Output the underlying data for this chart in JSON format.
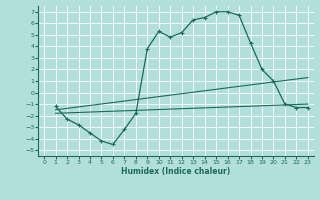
{
  "xlabel": "Humidex (Indice chaleur)",
  "bg_color": "#b2dfdb",
  "grid_color": "#ffffff",
  "line_color": "#1a6b5a",
  "xlim": [
    -0.5,
    23.5
  ],
  "ylim": [
    -5.5,
    7.5
  ],
  "xticks": [
    0,
    1,
    2,
    3,
    4,
    5,
    6,
    7,
    8,
    9,
    10,
    11,
    12,
    13,
    14,
    15,
    16,
    17,
    18,
    19,
    20,
    21,
    22,
    23
  ],
  "yticks": [
    -5,
    -4,
    -3,
    -2,
    -1,
    0,
    1,
    2,
    3,
    4,
    5,
    6,
    7
  ],
  "line1_x": [
    1,
    2,
    3,
    4,
    5,
    6,
    7,
    8,
    9,
    10,
    11,
    12,
    13,
    14,
    15,
    16,
    17,
    18,
    19,
    20,
    21,
    22,
    23
  ],
  "line1_y": [
    -1.2,
    -2.3,
    -2.8,
    -3.5,
    -4.2,
    -4.5,
    -3.2,
    -1.8,
    3.8,
    5.3,
    4.8,
    5.2,
    6.3,
    6.5,
    7.0,
    7.0,
    6.7,
    4.3,
    2.0,
    1.0,
    -1.0,
    -1.3,
    -1.3
  ],
  "line2_x": [
    1,
    23
  ],
  "line2_y": [
    -1.5,
    1.3
  ],
  "line3_x": [
    1,
    23
  ],
  "line3_y": [
    -1.8,
    -1.0
  ]
}
